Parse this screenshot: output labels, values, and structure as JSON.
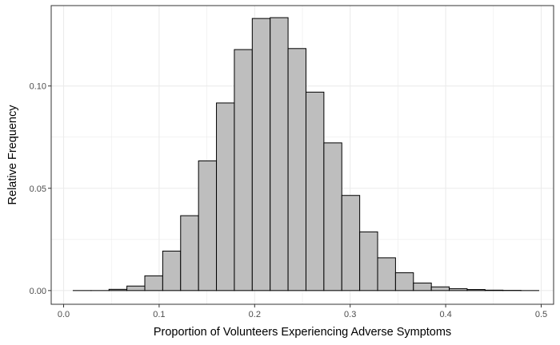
{
  "chart_data": {
    "type": "bar",
    "subtype": "histogram",
    "title": "",
    "xlabel": "Proportion of Volunteers Experiencing Adverse Symptoms",
    "ylabel": "Relative Frequency",
    "xlim": [
      -0.013,
      0.513
    ],
    "ylim": [
      -0.0067,
      0.1393
    ],
    "x_ticks": [
      0.0,
      0.1,
      0.2,
      0.3,
      0.4,
      0.5
    ],
    "x_tick_labels": [
      "0.0",
      "0.1",
      "0.2",
      "0.3",
      "0.4",
      "0.5"
    ],
    "y_ticks": [
      0.0,
      0.05,
      0.1
    ],
    "y_tick_labels": [
      "0.00",
      "0.05",
      "0.10"
    ],
    "grid": true,
    "bin_width": 0.01875,
    "bin_start": 0.01,
    "bin_counts_relative": [
      0.0,
      0.0,
      0.0006,
      0.0022,
      0.0072,
      0.0193,
      0.0366,
      0.0634,
      0.0917,
      0.1178,
      0.133,
      0.1334,
      0.1183,
      0.097,
      0.0722,
      0.0465,
      0.0287,
      0.016,
      0.0087,
      0.0037,
      0.0018,
      0.0009,
      0.0005,
      0.0002,
      0.0001,
      0.0
    ],
    "colors": {
      "bar_fill": "#bebebe",
      "bar_stroke": "#000000",
      "grid": "#ebebeb",
      "panel_border": "#333333"
    }
  }
}
